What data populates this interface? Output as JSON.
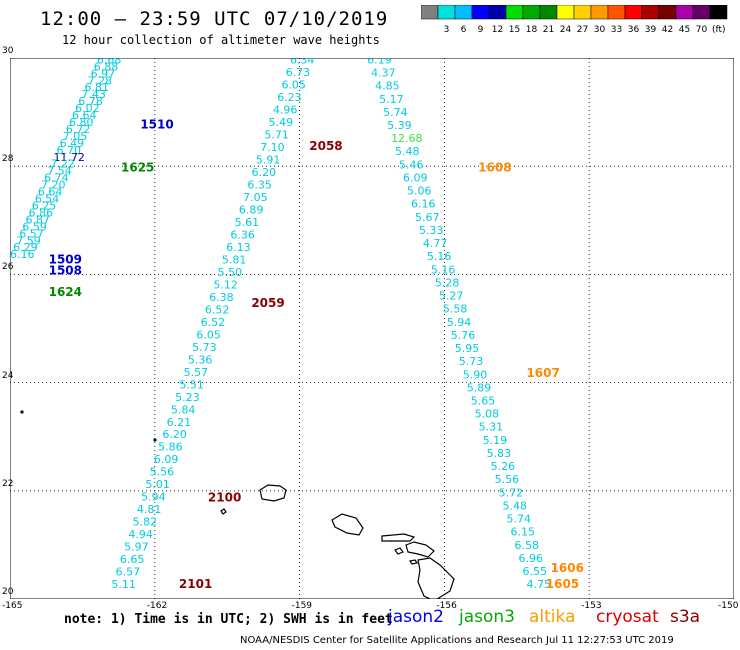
{
  "header": {
    "title": "12:00 – 23:59 UTC 07/10/2019",
    "subtitle": "12 hour collection of altimeter wave heights"
  },
  "color_scale": {
    "colors": [
      "#808080",
      "#00e0e0",
      "#00bfff",
      "#0000ff",
      "#0000aa",
      "#00dd00",
      "#00aa00",
      "#008800",
      "#ffff00",
      "#ffd000",
      "#ff9900",
      "#ff5500",
      "#ff0000",
      "#aa0000",
      "#770000",
      "#aa00aa",
      "#660066",
      "#000000"
    ],
    "labels": [
      "3",
      "6",
      "9",
      "12",
      "15",
      "18",
      "21",
      "24",
      "27",
      "30",
      "33",
      "36",
      "39",
      "42",
      "45",
      "70"
    ],
    "unit": "(ft)"
  },
  "axes": {
    "x_ticks": [
      "-165",
      "-162",
      "-159",
      "-156",
      "-153",
      "-150"
    ],
    "y_ticks": [
      "30",
      "28",
      "26",
      "24",
      "22",
      "20"
    ]
  },
  "tracks": [
    {
      "id": "track-a",
      "color": "#00ccdd",
      "start": [
        -163.2,
        29.9
      ],
      "end": [
        -165.0,
        26.3
      ],
      "values": [
        "6.68",
        "6.88",
        "6.97",
        "7.28",
        "6.81",
        "7.43",
        "6.78",
        "6.02",
        "6.64",
        "6.80",
        "6.72",
        "7.05",
        "6.49",
        "6.70",
        "11.72",
        "7.22",
        "7.54",
        "6.74",
        "7.20",
        "6.64",
        "6.54",
        "6.25",
        "6.86",
        "6.87",
        "6.59",
        "6.57",
        "7.59",
        "6.29",
        "6.16"
      ]
    },
    {
      "id": "track-b",
      "color": "#00ccdd",
      "start": [
        -159.2,
        29.9
      ],
      "end": [
        -162.9,
        20.2
      ],
      "values": [
        "6.34",
        "6.73",
        "6.05",
        "6.23",
        "4.96",
        "5.49",
        "5.71",
        "7.10",
        "5.91",
        "6.20",
        "6.35",
        "7.05",
        "6.89",
        "5.61",
        "6.36",
        "6.13",
        "5.81",
        "5.50",
        "5.12",
        "6.38",
        "6.52",
        "6.52",
        "6.05",
        "5.73",
        "5.36",
        "5.57",
        "5.51",
        "5.23",
        "5.84",
        "6.21",
        "6.20",
        "5.86",
        "6.09",
        "5.56",
        "5.01",
        "5.94",
        "4.81",
        "5.82",
        "4.94",
        "5.97",
        "6.65",
        "6.57",
        "5.11"
      ]
    },
    {
      "id": "track-c",
      "color": "#00ccdd",
      "start": [
        -157.6,
        29.9
      ],
      "end": [
        -154.3,
        20.2
      ],
      "values": [
        "6.19",
        "4.37",
        "4.85",
        "5.17",
        "5.74",
        "5.39",
        "12.68",
        "5.48",
        "5.46",
        "6.09",
        "5.06",
        "6.16",
        "5.67",
        "5.33",
        "4.77",
        "5.16",
        "5.16",
        "5.28",
        "5.27",
        "5.58",
        "5.94",
        "5.76",
        "5.95",
        "5.73",
        "5.90",
        "5.89",
        "5.65",
        "5.08",
        "5.31",
        "5.19",
        "5.83",
        "5.26",
        "5.56",
        "5.72",
        "5.48",
        "5.74",
        "6.15",
        "6.58",
        "6.96",
        "6.55",
        "4.75"
      ]
    }
  ],
  "highlight_values": {
    "12.68": "#44dd44",
    "11.72": "#0000aa",
    "9.20": "#0000aa"
  },
  "time_labels": [
    {
      "text": "1510",
      "color": "#0000cc",
      "lon": -162.3,
      "lat": 28.7
    },
    {
      "text": "1625",
      "color": "#008800",
      "lon": -162.7,
      "lat": 27.9
    },
    {
      "text": "1509",
      "color": "#0000cc",
      "lon": -164.2,
      "lat": 26.2
    },
    {
      "text": "1508",
      "color": "#0000cc",
      "lon": -164.2,
      "lat": 26.0
    },
    {
      "text": "1624",
      "color": "#008800",
      "lon": -164.2,
      "lat": 25.6
    },
    {
      "text": "2058",
      "color": "#880000",
      "lon": -158.8,
      "lat": 28.3
    },
    {
      "text": "2059",
      "color": "#880000",
      "lon": -160.0,
      "lat": 25.4
    },
    {
      "text": "2100",
      "color": "#880000",
      "lon": -160.9,
      "lat": 21.8
    },
    {
      "text": "2101",
      "color": "#880000",
      "lon": -161.5,
      "lat": 20.2
    },
    {
      "text": "1608",
      "color": "#ff8800",
      "lon": -155.3,
      "lat": 27.9
    },
    {
      "text": "1607",
      "color": "#ff8800",
      "lon": -154.3,
      "lat": 24.1
    },
    {
      "text": "1606",
      "color": "#ff8800",
      "lon": -153.8,
      "lat": 20.5
    },
    {
      "text": "1605",
      "color": "#ff8800",
      "lon": -153.9,
      "lat": 20.2
    }
  ],
  "footer": {
    "note": "note: 1) Time is in UTC; 2) SWH is in feet",
    "satellites": [
      {
        "name": "jason2",
        "color": "#0000ee"
      },
      {
        "name": "jason3",
        "color": "#00aa00"
      },
      {
        "name": "altika",
        "color": "#ff9900"
      },
      {
        "name": "cryosat",
        "color": "#dd0000"
      },
      {
        "name": "s3a",
        "color": "#880000"
      }
    ],
    "credit": "NOAA/NESDIS Center for Satellite Applications and Research    Jul 11 12:27:53 UTC 2019"
  }
}
